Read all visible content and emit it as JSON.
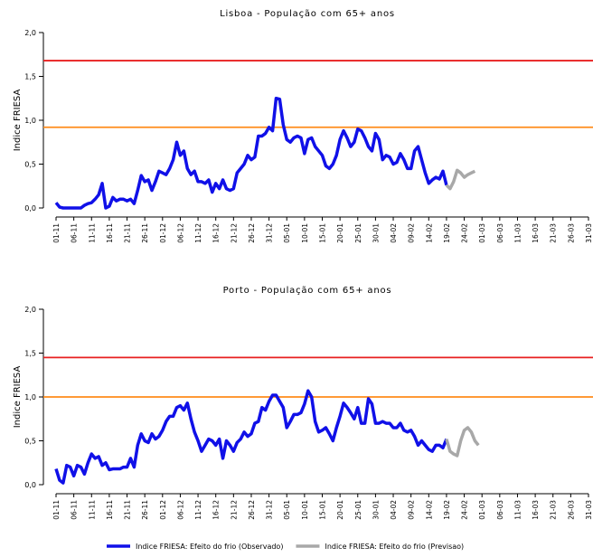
{
  "chart_data": [
    {
      "type": "line",
      "title": "Lisboa - População com 65+ anos",
      "y_label": "Indice FRIESA",
      "categories": [
        "01-11",
        null,
        null,
        null,
        null,
        "06-11",
        null,
        null,
        null,
        null,
        "11-11",
        null,
        null,
        null,
        null,
        "16-11",
        null,
        null,
        null,
        null,
        "21-11",
        null,
        null,
        null,
        null,
        "26-11",
        null,
        null,
        null,
        null,
        "01-12",
        null,
        null,
        null,
        null,
        "06-12",
        null,
        null,
        null,
        null,
        "11-12",
        null,
        null,
        null,
        null,
        "16-12",
        null,
        null,
        null,
        null,
        "21-12",
        null,
        null,
        null,
        null,
        "26-12",
        null,
        null,
        null,
        null,
        "31-12",
        null,
        null,
        null,
        null,
        "05-01",
        null,
        null,
        null,
        null,
        "10-01",
        null,
        null,
        null,
        null,
        "15-01",
        null,
        null,
        null,
        null,
        "20-01",
        null,
        null,
        null,
        null,
        "25-01",
        null,
        null,
        null,
        null,
        "30-01",
        null,
        null,
        null,
        null,
        "04-02",
        null,
        null,
        null,
        null,
        "09-02",
        null,
        null,
        null,
        null,
        "14-02",
        null,
        null,
        null,
        null,
        "19-02",
        null,
        null,
        null,
        null,
        "24-02",
        null,
        null,
        null,
        null,
        "01-03",
        null,
        null,
        null,
        null,
        "06-03",
        null,
        null,
        null,
        null,
        "11-03",
        null,
        null,
        null,
        null,
        "16-03",
        null,
        null,
        null,
        null,
        "21-03",
        null,
        null,
        null,
        null,
        "26-03",
        null,
        null,
        null,
        null,
        "31-03"
      ],
      "series": [
        {
          "name": "Indice FRIESA: Efeito do frio (Observado)",
          "color": "#1010e8",
          "values": [
            0.06,
            0.01,
            0,
            0,
            0,
            0,
            0,
            0,
            0.03,
            0.05,
            0.06,
            0.1,
            0.15,
            0.28,
            0.0,
            0.02,
            0.12,
            0.08,
            0.1,
            0.1,
            0.08,
            0.1,
            0.05,
            0.2,
            0.37,
            0.3,
            0.32,
            0.2,
            0.3,
            0.42,
            0.4,
            0.38,
            0.45,
            0.55,
            0.75,
            0.6,
            0.65,
            0.45,
            0.38,
            0.42,
            0.3,
            0.3,
            0.28,
            0.32,
            0.18,
            0.28,
            0.22,
            0.32,
            0.22,
            0.2,
            0.22,
            0.4,
            0.45,
            0.5,
            0.6,
            0.55,
            0.58,
            0.82,
            0.82,
            0.85,
            0.92,
            0.88,
            1.25,
            1.24,
            0.95,
            0.78,
            0.75,
            0.8,
            0.82,
            0.8,
            0.62,
            0.78,
            0.8,
            0.7,
            0.65,
            0.6,
            0.48,
            0.45,
            0.5,
            0.6,
            0.78,
            0.88,
            0.8,
            0.7,
            0.75,
            0.9,
            0.88,
            0.8,
            0.7,
            0.65,
            0.85,
            0.78,
            0.55,
            0.6,
            0.58,
            0.5,
            0.52,
            0.62,
            0.55,
            0.45,
            0.45,
            0.65,
            0.7,
            0.55,
            0.4,
            0.28,
            0.32,
            0.35,
            0.33,
            0.42,
            0.26,
            null,
            null,
            null,
            null,
            null,
            null,
            null,
            null,
            null,
            null,
            null,
            null,
            null,
            null,
            null,
            null,
            null,
            null,
            null,
            null,
            null,
            null,
            null,
            null,
            null,
            null,
            null,
            null,
            null,
            null,
            null,
            null,
            null,
            null,
            null,
            null,
            null,
            null,
            null,
            null
          ]
        },
        {
          "name": "Indice FRIESA: Efeito do frio (Previsao)",
          "color": "#a8a8a8",
          "values": [
            null,
            null,
            null,
            null,
            null,
            null,
            null,
            null,
            null,
            null,
            null,
            null,
            null,
            null,
            null,
            null,
            null,
            null,
            null,
            null,
            null,
            null,
            null,
            null,
            null,
            null,
            null,
            null,
            null,
            null,
            null,
            null,
            null,
            null,
            null,
            null,
            null,
            null,
            null,
            null,
            null,
            null,
            null,
            null,
            null,
            null,
            null,
            null,
            null,
            null,
            null,
            null,
            null,
            null,
            null,
            null,
            null,
            null,
            null,
            null,
            null,
            null,
            null,
            null,
            null,
            null,
            null,
            null,
            null,
            null,
            null,
            null,
            null,
            null,
            null,
            null,
            null,
            null,
            null,
            null,
            null,
            null,
            null,
            null,
            null,
            null,
            null,
            null,
            null,
            null,
            null,
            null,
            null,
            null,
            null,
            null,
            null,
            null,
            null,
            null,
            null,
            null,
            null,
            null,
            null,
            null,
            null,
            null,
            null,
            null,
            0.26,
            0.22,
            0.3,
            0.43,
            0.4,
            0.35,
            0.38,
            0.4,
            0.42,
            null,
            null,
            null,
            null,
            null,
            null,
            null,
            null,
            null,
            null,
            null,
            null,
            null,
            null,
            null,
            null,
            null,
            null,
            null,
            null,
            null,
            null,
            null,
            null,
            null,
            null,
            null,
            null,
            null,
            null,
            null,
            null
          ]
        }
      ],
      "hlines": [
        {
          "value": 1.68,
          "color": "#e82020"
        },
        {
          "value": 0.92,
          "color": "#ff8c1a"
        }
      ],
      "ylim": [
        0,
        2
      ],
      "yticks": [
        {
          "value": 0,
          "label": "0,0"
        },
        {
          "value": 0.5,
          "label": "0,5"
        },
        {
          "value": 1,
          "label": "1,0"
        },
        {
          "value": 1.5,
          "label": "1,5"
        },
        {
          "value": 2,
          "label": "2,0"
        }
      ]
    },
    {
      "type": "line",
      "title": "Porto - População com 65+ anos",
      "y_label": "Indice FRIESA",
      "categories": [
        "01-11",
        null,
        null,
        null,
        null,
        "06-11",
        null,
        null,
        null,
        null,
        "11-11",
        null,
        null,
        null,
        null,
        "16-11",
        null,
        null,
        null,
        null,
        "21-11",
        null,
        null,
        null,
        null,
        "26-11",
        null,
        null,
        null,
        null,
        "01-12",
        null,
        null,
        null,
        null,
        "06-12",
        null,
        null,
        null,
        null,
        "11-12",
        null,
        null,
        null,
        null,
        "16-12",
        null,
        null,
        null,
        null,
        "21-12",
        null,
        null,
        null,
        null,
        "26-12",
        null,
        null,
        null,
        null,
        "31-12",
        null,
        null,
        null,
        null,
        "05-01",
        null,
        null,
        null,
        null,
        "10-01",
        null,
        null,
        null,
        null,
        "15-01",
        null,
        null,
        null,
        null,
        "20-01",
        null,
        null,
        null,
        null,
        "25-01",
        null,
        null,
        null,
        null,
        "30-01",
        null,
        null,
        null,
        null,
        "04-02",
        null,
        null,
        null,
        null,
        "09-02",
        null,
        null,
        null,
        null,
        "14-02",
        null,
        null,
        null,
        null,
        "19-02",
        null,
        null,
        null,
        null,
        "24-02",
        null,
        null,
        null,
        null,
        "01-03",
        null,
        null,
        null,
        null,
        "06-03",
        null,
        null,
        null,
        null,
        "11-03",
        null,
        null,
        null,
        null,
        "16-03",
        null,
        null,
        null,
        null,
        "21-03",
        null,
        null,
        null,
        null,
        "26-03",
        null,
        null,
        null,
        null,
        "31-03"
      ],
      "series": [
        {
          "color": "#1010e8",
          "values": [
            0.18,
            0.05,
            0.02,
            0.22,
            0.2,
            0.1,
            0.22,
            0.2,
            0.12,
            0.25,
            0.35,
            0.3,
            0.32,
            0.22,
            0.25,
            0.17,
            0.18,
            0.18,
            0.18,
            0.2,
            0.2,
            0.3,
            0.2,
            0.45,
            0.58,
            0.5,
            0.48,
            0.58,
            0.52,
            0.55,
            0.62,
            0.72,
            0.78,
            0.78,
            0.88,
            0.9,
            0.85,
            0.93,
            0.75,
            0.6,
            0.5,
            0.38,
            0.45,
            0.52,
            0.5,
            0.45,
            0.52,
            0.3,
            0.5,
            0.45,
            0.38,
            0.48,
            0.52,
            0.6,
            0.55,
            0.58,
            0.7,
            0.72,
            0.88,
            0.85,
            0.95,
            1.02,
            1.02,
            0.95,
            0.88,
            0.65,
            0.72,
            0.8,
            0.8,
            0.82,
            0.92,
            1.07,
            1.0,
            0.72,
            0.6,
            0.62,
            0.65,
            0.58,
            0.5,
            0.65,
            0.78,
            0.93,
            0.88,
            0.82,
            0.75,
            0.88,
            0.7,
            0.7,
            0.98,
            0.92,
            0.7,
            0.7,
            0.72,
            0.7,
            0.7,
            0.65,
            0.65,
            0.7,
            0.62,
            0.6,
            0.62,
            0.55,
            0.45,
            0.5,
            0.45,
            0.4,
            0.38,
            0.45,
            0.45,
            0.42,
            0.52,
            null,
            null,
            null,
            null,
            null,
            null,
            null,
            null,
            null,
            null,
            null,
            null,
            null,
            null,
            null,
            null,
            null,
            null,
            null,
            null,
            null,
            null,
            null,
            null,
            null,
            null,
            null,
            null,
            null,
            null,
            null,
            null,
            null,
            null,
            null,
            null,
            null,
            null,
            null,
            null
          ]
        },
        {
          "color": "#a8a8a8",
          "values": [
            null,
            null,
            null,
            null,
            null,
            null,
            null,
            null,
            null,
            null,
            null,
            null,
            null,
            null,
            null,
            null,
            null,
            null,
            null,
            null,
            null,
            null,
            null,
            null,
            null,
            null,
            null,
            null,
            null,
            null,
            null,
            null,
            null,
            null,
            null,
            null,
            null,
            null,
            null,
            null,
            null,
            null,
            null,
            null,
            null,
            null,
            null,
            null,
            null,
            null,
            null,
            null,
            null,
            null,
            null,
            null,
            null,
            null,
            null,
            null,
            null,
            null,
            null,
            null,
            null,
            null,
            null,
            null,
            null,
            null,
            null,
            null,
            null,
            null,
            null,
            null,
            null,
            null,
            null,
            null,
            null,
            null,
            null,
            null,
            null,
            null,
            null,
            null,
            null,
            null,
            null,
            null,
            null,
            null,
            null,
            null,
            null,
            null,
            null,
            null,
            null,
            null,
            null,
            null,
            null,
            null,
            null,
            null,
            null,
            null,
            0.52,
            0.38,
            0.35,
            0.33,
            0.5,
            0.62,
            0.65,
            0.6,
            0.5,
            0.45,
            null,
            null,
            null,
            null,
            null,
            null,
            null,
            null,
            null,
            null,
            null,
            null,
            null,
            null,
            null,
            null,
            null,
            null,
            null,
            null,
            null,
            null,
            null,
            null,
            null,
            null,
            null,
            null,
            null,
            null,
            null
          ]
        }
      ],
      "hlines": [
        {
          "value": 1.45,
          "color": "#e82020"
        },
        {
          "value": 1.0,
          "color": "#ff8c1a"
        }
      ],
      "ylim": [
        0,
        2
      ],
      "yticks": [
        {
          "value": 0,
          "label": "0,0"
        },
        {
          "value": 0.5,
          "label": "0,5"
        },
        {
          "value": 1,
          "label": "1,0"
        },
        {
          "value": 1.5,
          "label": "1,5"
        },
        {
          "value": 2,
          "label": "2,0"
        }
      ]
    }
  ]
}
